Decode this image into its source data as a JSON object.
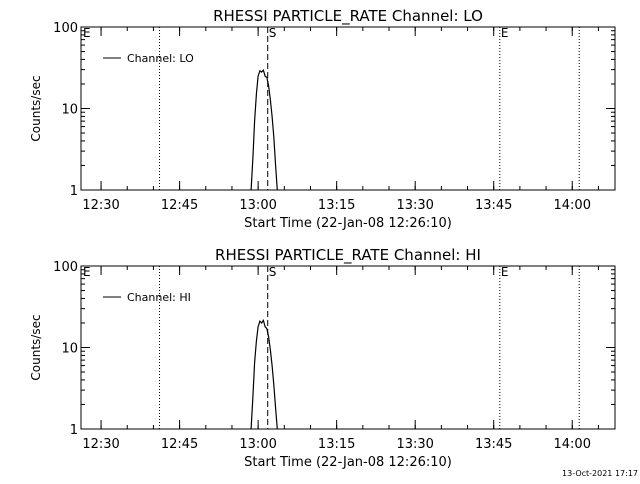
{
  "footer_timestamp": "13-Oct-2021 17:17",
  "chart_data": [
    {
      "type": "line",
      "title": "RHESSI PARTICLE_RATE Channel: LO",
      "xlabel": "Start Time (22-Jan-08 12:26:10)",
      "ylabel": "Counts/sec",
      "yscale": "log",
      "ylim": [
        1,
        100
      ],
      "yticks": [
        1,
        10,
        100
      ],
      "ytick_labels": [
        "1",
        "10",
        "100"
      ],
      "xlim": [
        "12:26:10",
        "14:08:10"
      ],
      "xticks": [
        "12:30",
        "12:45",
        "13:00",
        "13:15",
        "13:30",
        "13:45",
        "14:00"
      ],
      "grid": false,
      "legend": "top-left",
      "legend_entries": [
        "Channel: LO"
      ],
      "series": [
        {
          "name": "Channel: LO",
          "x": [
            "12:58:40",
            "12:59:00",
            "12:59:20",
            "12:59:40",
            "13:00:00",
            "13:00:20",
            "13:00:40",
            "13:01:00",
            "13:01:20",
            "13:01:40",
            "13:02:00",
            "13:02:20",
            "13:02:40",
            "13:03:00",
            "13:03:20",
            "13:03:40"
          ],
          "y": [
            1.0,
            2.5,
            7.0,
            15.0,
            25.0,
            29.0,
            28.0,
            29.5,
            25.0,
            24.0,
            19.0,
            13.0,
            8.0,
            4.5,
            2.0,
            1.0
          ]
        }
      ],
      "annotations": [
        {
          "label": "E",
          "time": "12:26:10",
          "style": "dotted"
        },
        {
          "label": "",
          "time": "12:41:10",
          "style": "dotted"
        },
        {
          "label": "S",
          "time": "13:01:50",
          "style": "dashed"
        },
        {
          "label": "E",
          "time": "13:46:10",
          "style": "dotted"
        },
        {
          "label": "",
          "time": "14:01:20",
          "style": "dotted"
        }
      ]
    },
    {
      "type": "line",
      "title": "RHESSI PARTICLE_RATE Channel: HI",
      "xlabel": "Start Time (22-Jan-08 12:26:10)",
      "ylabel": "Counts/sec",
      "yscale": "log",
      "ylim": [
        1,
        100
      ],
      "yticks": [
        1,
        10,
        100
      ],
      "ytick_labels": [
        "1",
        "10",
        "100"
      ],
      "xlim": [
        "12:26:10",
        "14:08:10"
      ],
      "xticks": [
        "12:30",
        "12:45",
        "13:00",
        "13:15",
        "13:30",
        "13:45",
        "14:00"
      ],
      "grid": false,
      "legend": "top-left",
      "legend_entries": [
        "Channel: HI"
      ],
      "series": [
        {
          "name": "Channel: HI",
          "x": [
            "12:58:40",
            "12:59:00",
            "12:59:20",
            "12:59:40",
            "13:00:00",
            "13:00:20",
            "13:00:40",
            "13:01:00",
            "13:01:20",
            "13:01:40",
            "13:02:00",
            "13:02:20",
            "13:02:40",
            "13:03:00",
            "13:03:20",
            "13:03:40"
          ],
          "y": [
            1.0,
            2.5,
            6.5,
            12.0,
            18.0,
            21.0,
            20.0,
            21.5,
            18.0,
            17.0,
            13.5,
            9.5,
            6.0,
            3.5,
            1.8,
            1.0
          ]
        }
      ],
      "annotations": [
        {
          "label": "E",
          "time": "12:26:10",
          "style": "dotted"
        },
        {
          "label": "",
          "time": "12:41:10",
          "style": "dotted"
        },
        {
          "label": "S",
          "time": "13:01:50",
          "style": "dashed"
        },
        {
          "label": "E",
          "time": "13:46:10",
          "style": "dotted"
        },
        {
          "label": "",
          "time": "14:01:20",
          "style": "dotted"
        }
      ]
    }
  ]
}
